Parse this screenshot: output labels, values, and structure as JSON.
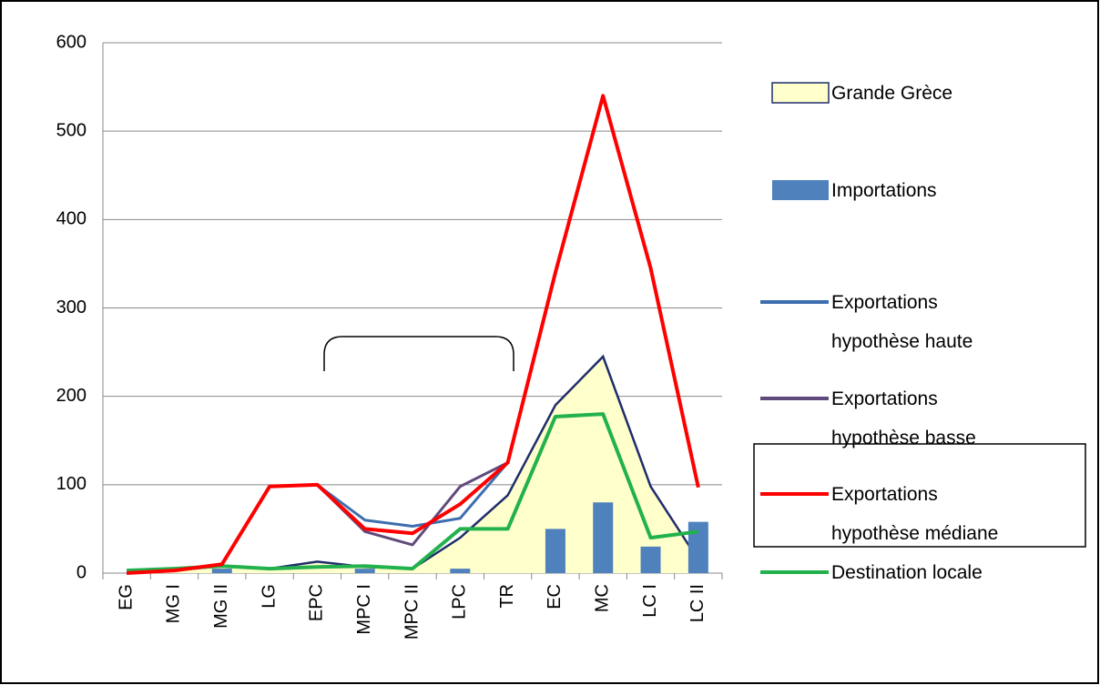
{
  "chart_data": {
    "type": "line",
    "categories": [
      "EG",
      "MG I",
      "MG II",
      "LG",
      "EPC",
      "MPC I",
      "MPC II",
      "LPC",
      "TR",
      "EC",
      "MC",
      "LC I",
      "LC II"
    ],
    "ylim": [
      0,
      600
    ],
    "yticks": [
      0,
      100,
      200,
      300,
      400,
      500,
      600
    ],
    "grid": true,
    "series": [
      {
        "name": "Grande Grèce",
        "type": "area",
        "color": "#ffffcc",
        "edge_color": "#1f2d6b",
        "values": [
          2,
          3,
          8,
          5,
          13,
          7,
          5,
          40,
          88,
          190,
          245,
          98,
          15
        ]
      },
      {
        "name": "Importations",
        "type": "bar",
        "color": "#4f81bd",
        "values": [
          0,
          0,
          5,
          0,
          0,
          5,
          0,
          5,
          0,
          50,
          80,
          30,
          58
        ]
      },
      {
        "name": "Exportations hypothèse haute",
        "type": "line",
        "color": "#3e6eb0",
        "values": [
          0,
          3,
          10,
          98,
          100,
          60,
          53,
          62,
          125,
          null,
          null,
          null,
          null
        ]
      },
      {
        "name": "Exportations hypothèse basse",
        "type": "line",
        "color": "#604a7b",
        "values": [
          0,
          3,
          10,
          98,
          100,
          47,
          32,
          98,
          125,
          null,
          null,
          null,
          null
        ]
      },
      {
        "name": "Exportations hypothèse médiane",
        "type": "line",
        "color": "#ff0000",
        "values": [
          0,
          3,
          10,
          98,
          100,
          50,
          45,
          78,
          125,
          340,
          540,
          345,
          97
        ]
      },
      {
        "name": "Destination locale",
        "type": "line",
        "color": "#22b14c",
        "values": [
          3,
          5,
          8,
          5,
          7,
          8,
          5,
          50,
          50,
          177,
          180,
          40,
          47
        ]
      }
    ]
  }
}
